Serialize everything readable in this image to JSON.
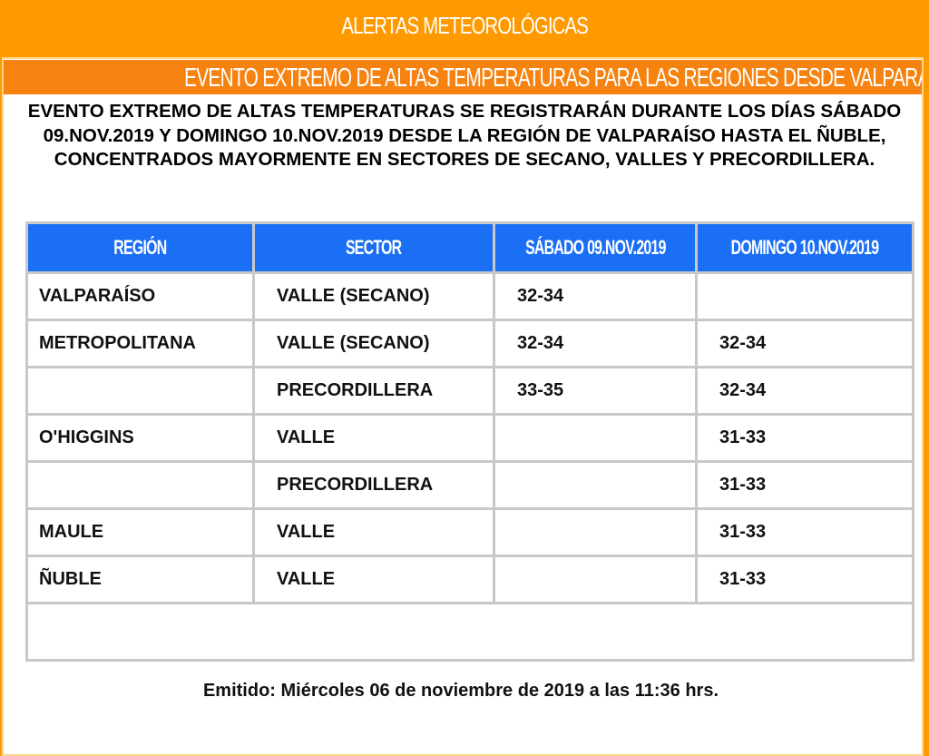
{
  "header": {
    "title": "ALERTAS METEOROLÓGICAS"
  },
  "alert": {
    "subtitle": "EVENTO EXTREMO DE ALTAS TEMPERATURAS PARA LAS REGIONES DESDE VALPARAÍSO HASTA EL ÑUBLE",
    "description": "EVENTO EXTREMO DE ALTAS TEMPERATURAS SE REGISTRARÁN DURANTE LOS DÍAS SÁBADO 09.NOV.2019 Y DOMINGO 10.NOV.2019 DESDE LA REGIÓN DE VALPARAÍSO HASTA EL ÑUBLE, CONCENTRADOS MAYORMENTE EN SECTORES DE SECANO, VALLES Y PRECORDILLERA."
  },
  "table": {
    "headers": [
      "REGIÓN",
      "SECTOR",
      "SÁBADO 09.NOV.2019",
      "DOMINGO 10.NOV.2019"
    ],
    "rows": [
      [
        "VALPARAÍSO",
        "VALLE (SECANO)",
        "32-34",
        ""
      ],
      [
        "METROPOLITANA",
        "VALLE (SECANO)",
        "32-34",
        "32-34"
      ],
      [
        "",
        "PRECORDILLERA",
        "33-35",
        "32-34"
      ],
      [
        "O'HIGGINS",
        "VALLE",
        "",
        "31-33"
      ],
      [
        "",
        "PRECORDILLERA",
        "",
        "31-33"
      ],
      [
        "MAULE",
        "VALLE",
        "",
        "31-33"
      ],
      [
        "ÑUBLE",
        "VALLE",
        "",
        "31-33"
      ]
    ]
  },
  "footer": {
    "issued": "Emitido: Miércoles 06 de noviembre de 2019 a las 11:36 hrs."
  },
  "colors": {
    "background": "#ff9900",
    "subtitle_bar": "#f6820f",
    "table_header": "#1a6ff5"
  }
}
